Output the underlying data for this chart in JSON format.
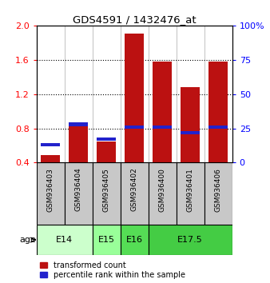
{
  "title": "GDS4591 / 1432476_at",
  "samples": [
    "GSM936403",
    "GSM936404",
    "GSM936405",
    "GSM936402",
    "GSM936400",
    "GSM936401",
    "GSM936406"
  ],
  "transformed_counts": [
    0.49,
    0.87,
    0.65,
    1.91,
    1.58,
    1.28,
    1.58
  ],
  "percentile_ranks_pct": [
    13,
    28,
    17,
    26,
    26,
    22,
    26
  ],
  "ylim_left": [
    0.4,
    2.0
  ],
  "ylim_right": [
    0,
    100
  ],
  "yticks_left": [
    0.4,
    0.8,
    1.2,
    1.6,
    2.0
  ],
  "yticks_right": [
    0,
    25,
    50,
    75,
    100
  ],
  "bar_color": "#bb1111",
  "percentile_color": "#2222cc",
  "bar_width": 0.7,
  "sample_bg_color": "#c8c8c8",
  "age_spans": [
    [
      0,
      2,
      "E14",
      "#ccffcc"
    ],
    [
      2,
      3,
      "E15",
      "#99ff99"
    ],
    [
      3,
      4,
      "E16",
      "#55dd55"
    ],
    [
      4,
      7,
      "E17.5",
      "#44cc44"
    ]
  ],
  "gridlines": [
    0.8,
    1.2,
    1.6
  ],
  "right_tick_labels": [
    "0",
    "25",
    "50",
    "75",
    "100%"
  ]
}
